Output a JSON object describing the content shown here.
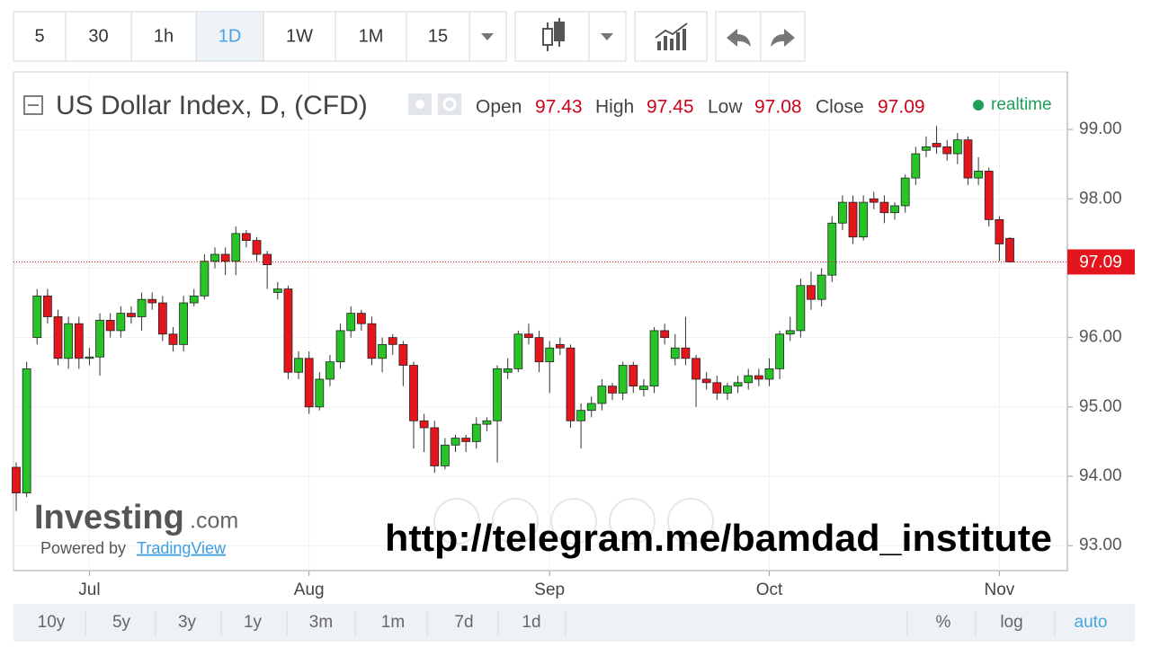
{
  "toolbar": {
    "intervals": [
      "5",
      "30",
      "1h",
      "1D",
      "1W",
      "1M",
      "15"
    ],
    "active": 3
  },
  "chart_data": {
    "type": "candlestick",
    "title": "US Dollar Index, D, (CFD)",
    "ohlc_header": [
      {
        "label": "Open",
        "value": 97.43
      },
      {
        "label": "High",
        "value": 97.45
      },
      {
        "label": "Low",
        "value": 97.08
      },
      {
        "label": "Close",
        "value": 97.09
      }
    ],
    "status": "realtime",
    "categories": [
      null,
      null,
      null,
      null,
      null,
      null,
      null,
      "Jul",
      null,
      null,
      null,
      null,
      null,
      null,
      null,
      null,
      null,
      null,
      null,
      null,
      null,
      null,
      null,
      null,
      null,
      null,
      null,
      null,
      "Aug",
      null,
      null,
      null,
      null,
      null,
      null,
      null,
      null,
      null,
      null,
      null,
      null,
      null,
      null,
      null,
      null,
      null,
      null,
      null,
      null,
      null,
      null,
      "Sep",
      null,
      null,
      null,
      null,
      null,
      null,
      null,
      null,
      null,
      null,
      null,
      null,
      null,
      null,
      null,
      null,
      null,
      null,
      null,
      null,
      "Oct",
      null,
      null,
      null,
      null,
      null,
      null,
      null,
      null,
      null,
      null,
      null,
      null,
      null,
      null,
      null,
      null,
      null,
      null,
      null,
      null,
      null,
      "Nov",
      null
    ],
    "open": [
      94.13,
      93.76,
      96.0,
      96.6,
      96.3,
      95.7,
      96.2,
      95.7,
      95.72,
      96.25,
      96.1,
      96.35,
      96.3,
      96.55,
      96.5,
      96.05,
      95.9,
      96.5,
      96.6,
      97.1,
      97.2,
      97.1,
      97.5,
      97.4,
      97.2,
      96.65,
      96.7,
      95.5,
      95.7,
      95.0,
      95.4,
      95.65,
      96.1,
      96.35,
      96.2,
      95.7,
      96.0,
      95.9,
      95.6,
      94.8,
      94.7,
      94.15,
      94.45,
      94.55,
      94.5,
      94.75,
      94.8,
      95.5,
      95.55,
      96.05,
      96.0,
      95.65,
      95.9,
      95.85,
      94.8,
      94.95,
      95.05,
      95.3,
      95.2,
      95.6,
      95.25,
      95.3,
      96.1,
      95.7,
      95.85,
      95.7,
      95.4,
      95.35,
      95.2,
      95.3,
      95.35,
      95.45,
      95.4,
      95.55,
      96.05,
      96.1,
      96.75,
      96.55,
      96.9,
      97.65,
      97.95,
      97.45,
      98.0,
      97.95,
      97.8,
      97.9,
      98.3,
      98.7,
      98.8,
      98.75,
      98.65,
      98.85,
      98.3,
      98.4,
      97.7,
      97.43
    ],
    "high": [
      94.2,
      95.65,
      96.7,
      96.7,
      96.4,
      96.3,
      96.3,
      95.85,
      96.35,
      96.35,
      96.45,
      96.45,
      96.65,
      96.65,
      96.6,
      96.15,
      96.6,
      96.7,
      97.2,
      97.3,
      97.3,
      97.6,
      97.55,
      97.45,
      97.25,
      96.8,
      96.75,
      95.8,
      95.8,
      95.5,
      95.75,
      96.2,
      96.45,
      96.4,
      96.3,
      96.0,
      96.05,
      95.95,
      95.65,
      94.9,
      94.8,
      94.55,
      94.6,
      94.6,
      94.85,
      94.85,
      95.6,
      95.7,
      96.1,
      96.2,
      96.1,
      95.95,
      96.0,
      95.9,
      95.05,
      95.15,
      95.4,
      95.35,
      95.65,
      95.65,
      95.4,
      96.15,
      96.2,
      96.05,
      96.3,
      95.75,
      95.5,
      95.45,
      95.35,
      95.45,
      95.55,
      95.55,
      95.7,
      96.1,
      96.3,
      96.85,
      96.95,
      97.0,
      97.75,
      98.05,
      98.05,
      98.05,
      98.1,
      98.05,
      97.95,
      98.35,
      98.75,
      98.9,
      99.05,
      98.85,
      98.95,
      98.9,
      98.6,
      98.45,
      97.75,
      97.45
    ],
    "low": [
      93.5,
      93.7,
      95.9,
      96.2,
      95.6,
      95.55,
      95.55,
      95.6,
      95.45,
      96.0,
      96.0,
      96.2,
      96.1,
      96.4,
      95.95,
      95.8,
      95.8,
      96.45,
      96.55,
      97.0,
      96.9,
      96.9,
      97.3,
      97.1,
      96.7,
      96.55,
      95.4,
      95.4,
      94.9,
      94.95,
      95.3,
      95.55,
      96.0,
      96.1,
      95.6,
      95.5,
      95.75,
      95.3,
      94.4,
      94.35,
      94.05,
      94.1,
      94.35,
      94.35,
      94.4,
      94.65,
      94.2,
      95.4,
      95.5,
      95.9,
      95.5,
      95.2,
      95.75,
      94.7,
      94.4,
      94.85,
      94.95,
      95.1,
      95.1,
      95.2,
      95.15,
      95.2,
      95.9,
      95.6,
      95.6,
      95.0,
      95.25,
      95.1,
      95.1,
      95.2,
      95.25,
      95.3,
      95.3,
      95.4,
      95.95,
      96.0,
      96.4,
      96.45,
      96.8,
      97.55,
      97.35,
      97.4,
      97.85,
      97.65,
      97.7,
      97.8,
      98.2,
      98.6,
      98.65,
      98.55,
      98.5,
      98.2,
      98.2,
      97.6,
      97.1,
      97.08
    ],
    "close": [
      93.76,
      95.55,
      96.6,
      96.3,
      95.7,
      96.2,
      95.7,
      95.72,
      96.25,
      96.1,
      96.35,
      96.3,
      96.55,
      96.5,
      96.05,
      95.9,
      96.5,
      96.6,
      97.1,
      97.2,
      97.1,
      97.5,
      97.4,
      97.2,
      97.05,
      96.7,
      95.5,
      95.7,
      95.0,
      95.4,
      95.65,
      96.1,
      96.35,
      96.2,
      95.7,
      95.9,
      95.9,
      95.6,
      94.8,
      94.7,
      94.15,
      94.45,
      94.55,
      94.5,
      94.75,
      94.8,
      95.55,
      95.55,
      96.05,
      96.0,
      95.65,
      95.85,
      95.85,
      94.8,
      94.95,
      95.05,
      95.3,
      95.2,
      95.6,
      95.3,
      95.3,
      96.1,
      96.0,
      95.85,
      95.7,
      95.4,
      95.35,
      95.2,
      95.3,
      95.35,
      95.45,
      95.4,
      95.55,
      96.05,
      96.1,
      96.75,
      96.55,
      96.9,
      97.65,
      97.95,
      97.45,
      97.95,
      97.95,
      97.8,
      97.9,
      98.3,
      98.65,
      98.75,
      98.75,
      98.65,
      98.85,
      98.3,
      98.4,
      97.7,
      97.35,
      97.09
    ],
    "up_color": "#27c327",
    "down_color": "#e3161d",
    "ylim": [
      92.64,
      99.83
    ],
    "yticks": [
      {
        "value": 93,
        "label": "93.00"
      },
      {
        "value": 94,
        "label": "94.00"
      },
      {
        "value": 95,
        "label": "95.00"
      },
      {
        "value": 96,
        "label": "96.00"
      },
      {
        "value": 97,
        "label": "97.00"
      },
      {
        "value": 98,
        "label": "98.00"
      },
      {
        "value": 99,
        "label": "99.00"
      }
    ],
    "grid": true
  },
  "branding": {
    "logo": "Investing",
    "logo_suffix": ".com",
    "powered_by": "Powered by",
    "provider": "TradingView"
  },
  "watermark": "http://telegram.me/bamdad_institute",
  "range_bar": {
    "ranges": [
      "10y",
      "5y",
      "3y",
      "1y",
      "3m",
      "1m",
      "7d",
      "1d"
    ],
    "options": [
      "%",
      "log",
      "auto"
    ],
    "active_option": 2
  }
}
